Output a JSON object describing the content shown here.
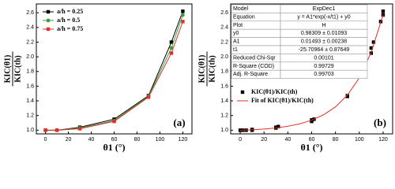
{
  "chart_data": [
    {
      "type": "line",
      "panel_label": "(a)",
      "x_label": "θ1 (°)",
      "y_label_numerator": "KIC(θ1)",
      "y_label_denominator": "KIC(th)",
      "x": [
        0,
        10,
        30,
        60,
        90,
        110,
        120
      ],
      "series": [
        {
          "name": "a/h = 0.25",
          "color": "#000000",
          "marker": "square",
          "mode": "lines+markers",
          "values": [
            1.0,
            1.0,
            1.04,
            1.15,
            1.47,
            2.2,
            2.62
          ]
        },
        {
          "name": "a/h = 0.5",
          "color": "#3aa23a",
          "marker": "circle",
          "mode": "lines+markers",
          "values": [
            1.0,
            1.0,
            1.03,
            1.13,
            1.46,
            2.12,
            2.57
          ]
        },
        {
          "name": "a/h = 0.75",
          "color": "#e0302a",
          "marker": "square",
          "mode": "lines+markers",
          "values": [
            1.0,
            1.0,
            1.02,
            1.12,
            1.45,
            2.05,
            2.48
          ]
        }
      ],
      "xlim": [
        -8,
        128
      ],
      "ylim": [
        0.95,
        2.72
      ],
      "xticks": [
        0,
        20,
        40,
        60,
        80,
        100,
        120
      ],
      "yticks": [
        {
          "value": 1.0,
          "label": "1.0"
        },
        1.2,
        1.4,
        1.6,
        1.8,
        {
          "value": 2.0,
          "label": "2.0"
        },
        2.2,
        2.4,
        2.6
      ],
      "legend": "upper left"
    },
    {
      "type": "scatter",
      "panel_label": "(b)",
      "x_label": "θ1 (°)",
      "y_label_numerator": "KIC(θ1)",
      "y_label_denominator": "KIC(th)",
      "series": [
        {
          "name": "KIC(θ1)/KIC(th)",
          "color": "#000000",
          "marker": "square",
          "mode": "markers",
          "x": [
            0,
            2,
            5,
            10,
            10,
            30,
            30,
            32,
            60,
            60,
            62,
            90,
            90,
            110,
            110,
            112,
            118,
            120,
            120
          ],
          "values": [
            1.0,
            1.0,
            1.0,
            1.0,
            1.01,
            1.03,
            1.04,
            1.05,
            1.12,
            1.14,
            1.15,
            1.46,
            1.47,
            2.05,
            2.12,
            2.2,
            2.48,
            2.57,
            2.62
          ]
        },
        {
          "name": "Fit of KIC(θ1)/KIC(th)",
          "color": "#e0302a",
          "marker": "none",
          "mode": "lines",
          "x": [
            0,
            10,
            20,
            30,
            40,
            50,
            60,
            70,
            80,
            90,
            100,
            110,
            120
          ],
          "values": [
            1.0,
            1.005,
            1.016,
            1.031,
            1.054,
            1.087,
            1.137,
            1.21,
            1.318,
            1.478,
            1.713,
            2.061,
            2.573
          ]
        }
      ],
      "xlim": [
        -8,
        128
      ],
      "ylim": [
        0.95,
        2.72
      ],
      "xticks": [
        0,
        20,
        40,
        60,
        80,
        100,
        120
      ],
      "yticks": [
        {
          "value": 1.0,
          "label": "1.0"
        },
        1.2,
        1.4,
        1.6,
        1.8,
        {
          "value": 2.0,
          "label": "2.0"
        },
        2.2,
        2.4,
        2.6
      ],
      "legend": "center left",
      "stats_table": {
        "rows": [
          [
            "Model",
            "ExpDec1"
          ],
          [
            "Equation",
            "y = A1*exp(-x/t1) + y0"
          ],
          [
            "Plot",
            "H"
          ],
          [
            "y0",
            "0.98309 ± 0.01093"
          ],
          [
            "A1",
            "0.01493 ± 0.00238"
          ],
          [
            "t1",
            "-25.70964 ± 0.87649"
          ],
          [
            "Reduced Chi-Sqr",
            "0.00101"
          ],
          [
            "R-Square (COD)",
            "0.99729"
          ],
          [
            "Adj. R-Square",
            "0.99703"
          ]
        ]
      }
    }
  ]
}
